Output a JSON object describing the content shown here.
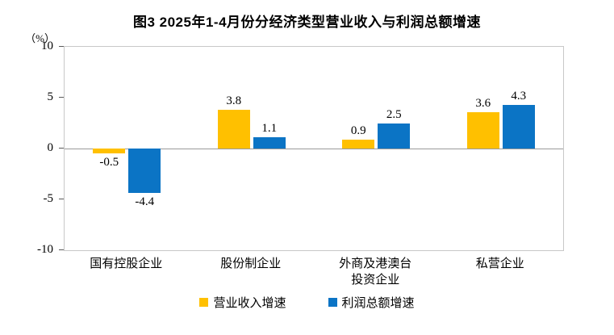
{
  "chart": {
    "title": "图3 2025年1-4月份分经济类型营业收入与利润总额增速",
    "unit_label": "（%）"
  },
  "chart_data": {
    "type": "bar",
    "title": "图3 2025年1-4月份分经济类型营业收入与利润总额增速",
    "unit": "（%）",
    "categories": [
      "国有控股企业",
      "股份制企业",
      "外商及港澳台\n投资企业",
      "私营企业"
    ],
    "series": [
      {
        "name": "营业收入增速",
        "color": "#FFC000",
        "values": [
          -0.5,
          3.8,
          0.9,
          3.6
        ]
      },
      {
        "name": "利润总额增速",
        "color": "#0B74C5",
        "values": [
          -4.4,
          1.1,
          2.5,
          4.3
        ]
      }
    ],
    "ylim": [
      -10,
      10
    ],
    "yticks": [
      10,
      5,
      0,
      -5,
      -10
    ],
    "grid": false,
    "legend_position": "bottom",
    "value_labels_shown": true
  }
}
